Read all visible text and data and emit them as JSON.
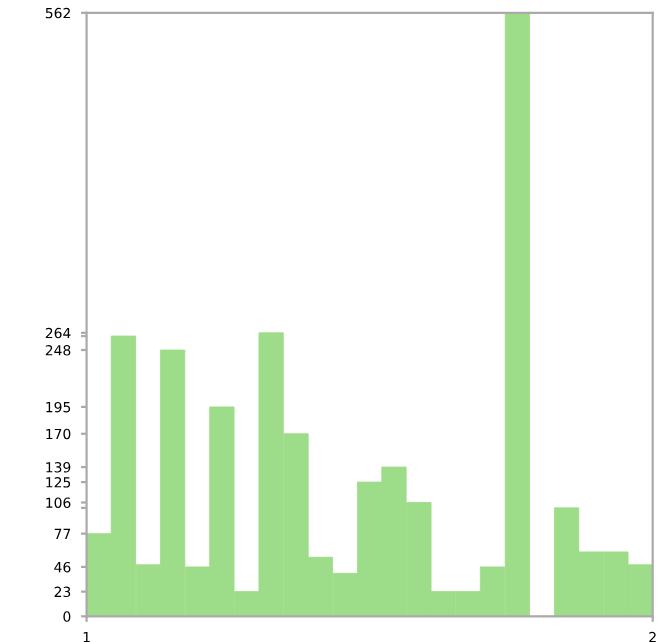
{
  "chart_data": {
    "type": "bar",
    "x": [
      1.022,
      1.065,
      1.109,
      1.152,
      1.196,
      1.239,
      1.283,
      1.326,
      1.37,
      1.413,
      1.457,
      1.5,
      1.543,
      1.587,
      1.63,
      1.674,
      1.717,
      1.761,
      1.804,
      1.848,
      1.891,
      1.935,
      1.978
    ],
    "values": [
      77,
      261,
      48,
      248,
      46,
      195,
      23,
      264,
      170,
      55,
      40,
      125,
      139,
      106,
      23,
      23,
      46,
      562,
      0,
      101,
      60,
      60,
      48
    ],
    "color": "#9ddc88",
    "xlim": [
      1,
      2
    ],
    "xticks": [
      1,
      2
    ],
    "ylim": [
      0,
      562
    ],
    "yticks": [
      0,
      23,
      46,
      77,
      {
        "value": 101,
        "label": null
      },
      106,
      125,
      139,
      170,
      195,
      248,
      {
        "value": 261,
        "label": null
      },
      264,
      562
    ],
    "grid": false,
    "legend": false
  }
}
